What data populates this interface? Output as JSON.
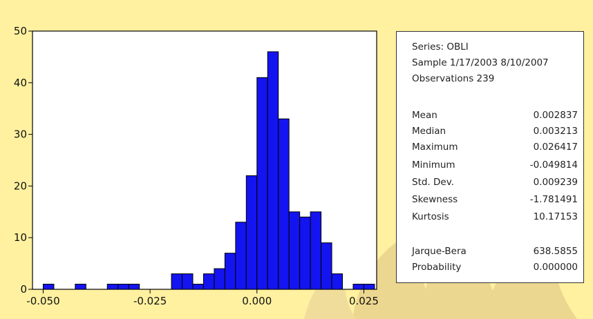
{
  "chart_data": {
    "type": "bar",
    "subtype": "histogram",
    "bin_width": 0.0025,
    "bins": [
      {
        "x0": -0.05,
        "x1": -0.0475,
        "count": 1
      },
      {
        "x0": -0.0475,
        "x1": -0.045,
        "count": 0
      },
      {
        "x0": -0.045,
        "x1": -0.0425,
        "count": 0
      },
      {
        "x0": -0.0425,
        "x1": -0.04,
        "count": 1
      },
      {
        "x0": -0.04,
        "x1": -0.0375,
        "count": 0
      },
      {
        "x0": -0.0375,
        "x1": -0.035,
        "count": 0
      },
      {
        "x0": -0.035,
        "x1": -0.0325,
        "count": 1
      },
      {
        "x0": -0.0325,
        "x1": -0.03,
        "count": 1
      },
      {
        "x0": -0.03,
        "x1": -0.0275,
        "count": 1
      },
      {
        "x0": -0.0275,
        "x1": -0.025,
        "count": 0
      },
      {
        "x0": -0.025,
        "x1": -0.0225,
        "count": 0
      },
      {
        "x0": -0.0225,
        "x1": -0.02,
        "count": 0
      },
      {
        "x0": -0.02,
        "x1": -0.0175,
        "count": 3
      },
      {
        "x0": -0.0175,
        "x1": -0.015,
        "count": 3
      },
      {
        "x0": -0.015,
        "x1": -0.0125,
        "count": 1
      },
      {
        "x0": -0.0125,
        "x1": -0.01,
        "count": 3
      },
      {
        "x0": -0.01,
        "x1": -0.0075,
        "count": 4
      },
      {
        "x0": -0.0075,
        "x1": -0.005,
        "count": 7
      },
      {
        "x0": -0.005,
        "x1": -0.0025,
        "count": 13
      },
      {
        "x0": -0.0025,
        "x1": 0.0,
        "count": 22
      },
      {
        "x0": 0.0,
        "x1": 0.0025,
        "count": 41
      },
      {
        "x0": 0.0025,
        "x1": 0.005,
        "count": 46
      },
      {
        "x0": 0.005,
        "x1": 0.0075,
        "count": 33
      },
      {
        "x0": 0.0075,
        "x1": 0.01,
        "count": 15
      },
      {
        "x0": 0.01,
        "x1": 0.0125,
        "count": 14
      },
      {
        "x0": 0.0125,
        "x1": 0.015,
        "count": 15
      },
      {
        "x0": 0.015,
        "x1": 0.0175,
        "count": 9
      },
      {
        "x0": 0.0175,
        "x1": 0.02,
        "count": 3
      },
      {
        "x0": 0.02,
        "x1": 0.0225,
        "count": 0
      },
      {
        "x0": 0.0225,
        "x1": 0.025,
        "count": 1
      },
      {
        "x0": 0.025,
        "x1": 0.0275,
        "count": 1
      }
    ],
    "xlim": [
      -0.0525,
      0.028
    ],
    "ylim": [
      0,
      50
    ],
    "x_ticks": [
      {
        "value": -0.05,
        "label": "-0.050"
      },
      {
        "value": -0.025,
        "label": "-0.025"
      },
      {
        "value": 0.0,
        "label": "0.000"
      },
      {
        "value": 0.025,
        "label": "0.025"
      }
    ],
    "y_ticks": [
      {
        "value": 0,
        "label": "0"
      },
      {
        "value": 10,
        "label": "10"
      },
      {
        "value": 20,
        "label": "20"
      },
      {
        "value": 30,
        "label": "30"
      },
      {
        "value": 40,
        "label": "40"
      },
      {
        "value": 50,
        "label": "50"
      }
    ],
    "title": "",
    "xlabel": "",
    "ylabel": "",
    "grid": false,
    "colors": {
      "bar_fill": "#1414F0",
      "bar_stroke": "#000000",
      "plot_bg": "#FFFFFF",
      "page_bg": "#FFF1A0"
    }
  },
  "stats_panel": {
    "series": "Series: OBLI",
    "sample": "Sample 1/17/2003 8/10/2007",
    "observations": "Observations 239",
    "rows": [
      {
        "label": "Mean",
        "value": "0.002837"
      },
      {
        "label": "Median",
        "value": "0.003213"
      },
      {
        "label": "Maximum",
        "value": "0.026417"
      },
      {
        "label": "Minimum",
        "value": "-0.049814"
      },
      {
        "label": "Std. Dev.",
        "value": "0.009239"
      },
      {
        "label": "Skewness",
        "value": "-1.781491"
      },
      {
        "label": "Kurtosis",
        "value": "10.17153"
      }
    ],
    "tests": [
      {
        "label": "Jarque-Bera",
        "value": "638.5855"
      },
      {
        "label": "Probability",
        "value": "0.000000"
      }
    ]
  }
}
